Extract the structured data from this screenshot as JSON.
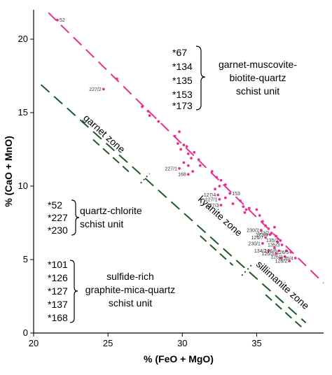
{
  "chart_data": {
    "type": "scatter",
    "xlabel": "% (FeO + MgO)",
    "ylabel": "% (CaO + MnO)",
    "xlim": [
      20,
      39.5
    ],
    "ylim": [
      0,
      22
    ],
    "xticks": [
      20,
      25,
      30,
      35
    ],
    "yticks": [
      0,
      5,
      10,
      15,
      20
    ],
    "points": [
      {
        "x": 21.6,
        "y": 21.3,
        "label": "52"
      },
      {
        "x": 24.7,
        "y": 16.6,
        "label": "227/2"
      },
      {
        "x": 25.6,
        "y": 17.3,
        "label": ""
      },
      {
        "x": 27.3,
        "y": 15.4,
        "label": ""
      },
      {
        "x": 27.7,
        "y": 15.1,
        "label": ""
      },
      {
        "x": 27.8,
        "y": 14.8,
        "label": ""
      },
      {
        "x": 28.4,
        "y": 14.4,
        "label": ""
      },
      {
        "x": 29.5,
        "y": 13.4,
        "label": ""
      },
      {
        "x": 29.8,
        "y": 13.7,
        "label": ""
      },
      {
        "x": 29.7,
        "y": 12.9,
        "label": ""
      },
      {
        "x": 29.9,
        "y": 12.5,
        "label": ""
      },
      {
        "x": 30.1,
        "y": 12.8,
        "label": ""
      },
      {
        "x": 30.3,
        "y": 12.7,
        "label": ""
      },
      {
        "x": 30.4,
        "y": 12.2,
        "label": ""
      },
      {
        "x": 30.6,
        "y": 11.9,
        "label": ""
      },
      {
        "x": 30.8,
        "y": 12.3,
        "label": ""
      },
      {
        "x": 30.1,
        "y": 11.6,
        "label": ""
      },
      {
        "x": 30.4,
        "y": 11.4,
        "label": ""
      },
      {
        "x": 31.1,
        "y": 11.8,
        "label": ""
      },
      {
        "x": 31.2,
        "y": 11.4,
        "label": ""
      },
      {
        "x": 30.7,
        "y": 11.0,
        "label": ""
      },
      {
        "x": 29.8,
        "y": 11.2,
        "label": "227/1"
      },
      {
        "x": 30.4,
        "y": 10.8,
        "label": "168"
      },
      {
        "x": 32.0,
        "y": 11.0,
        "label": ""
      },
      {
        "x": 32.3,
        "y": 10.6,
        "label": ""
      },
      {
        "x": 32.6,
        "y": 10.4,
        "label": ""
      },
      {
        "x": 32.5,
        "y": 10.0,
        "label": ""
      },
      {
        "x": 32.9,
        "y": 10.1,
        "label": ""
      },
      {
        "x": 32.2,
        "y": 9.8,
        "label": ""
      },
      {
        "x": 32.4,
        "y": 9.4,
        "label": "127/4"
      },
      {
        "x": 32.5,
        "y": 9.1,
        "label": "127/1"
      },
      {
        "x": 32.9,
        "y": 9.2,
        "label": ""
      },
      {
        "x": 33.2,
        "y": 9.5,
        "label": "153"
      },
      {
        "x": 32.6,
        "y": 8.7,
        "label": "127/3"
      },
      {
        "x": 33.4,
        "y": 8.8,
        "label": ""
      },
      {
        "x": 33.9,
        "y": 9.0,
        "label": ""
      },
      {
        "x": 34.1,
        "y": 8.6,
        "label": ""
      },
      {
        "x": 34.3,
        "y": 8.4,
        "label": ""
      },
      {
        "x": 34.5,
        "y": 8.5,
        "label": ""
      },
      {
        "x": 34.2,
        "y": 8.2,
        "label": ""
      },
      {
        "x": 35.0,
        "y": 8.4,
        "label": ""
      },
      {
        "x": 35.2,
        "y": 8.0,
        "label": ""
      },
      {
        "x": 35.4,
        "y": 7.6,
        "label": ""
      },
      {
        "x": 35.6,
        "y": 7.3,
        "label": ""
      },
      {
        "x": 35.8,
        "y": 7.1,
        "label": ""
      },
      {
        "x": 36.2,
        "y": 7.2,
        "label": ""
      },
      {
        "x": 36.0,
        "y": 6.8,
        "label": "173/2"
      },
      {
        "x": 35.3,
        "y": 7.0,
        "label": "230/2"
      },
      {
        "x": 35.9,
        "y": 6.7,
        "label": "173/4"
      },
      {
        "x": 35.6,
        "y": 6.5,
        "label": "126/7"
      },
      {
        "x": 36.3,
        "y": 6.6,
        "label": ""
      },
      {
        "x": 36.4,
        "y": 6.2,
        "label": ""
      },
      {
        "x": 36.6,
        "y": 6.3,
        "label": "135/2"
      },
      {
        "x": 35.4,
        "y": 6.1,
        "label": "230/1"
      },
      {
        "x": 36.7,
        "y": 6.0,
        "label": "135/3"
      },
      {
        "x": 36.2,
        "y": 5.8,
        "label": ""
      },
      {
        "x": 35.8,
        "y": 5.6,
        "label": "134/2"
      },
      {
        "x": 36.5,
        "y": 5.6,
        "label": "126/6"
      },
      {
        "x": 36.3,
        "y": 5.4,
        "label": "126/3"
      },
      {
        "x": 37.0,
        "y": 5.6,
        "label": ""
      },
      {
        "x": 37.3,
        "y": 5.5,
        "label": "126/5"
      },
      {
        "x": 36.9,
        "y": 5.2,
        "label": "126/1"
      },
      {
        "x": 37.6,
        "y": 5.1,
        "label": "126/4"
      },
      {
        "x": 37.2,
        "y": 4.9,
        "label": "126/2"
      },
      {
        "x": 36.6,
        "y": 5.1,
        "label": ""
      }
    ],
    "trend_lines": [
      {
        "color": "#e8308f",
        "x1": 21.0,
        "y1": 21.8,
        "x2": 39.5,
        "y2": 3.4
      },
      {
        "color": "#1e5a28",
        "x1": 20.5,
        "y1": 16.9,
        "x2": 38.3,
        "y2": 0.7
      }
    ],
    "zones": [
      {
        "label": "garnet zone",
        "x": 24.6,
        "y": 13.4
      },
      {
        "label": "kyanite zone",
        "x": 32.4,
        "y": 7.8
      },
      {
        "label": "sillimanite zone",
        "x": 36.6,
        "y": 3.1
      }
    ],
    "groups": [
      {
        "samples": [
          "*67",
          "*134",
          "*135",
          "*153",
          "*173"
        ],
        "description": [
          "garnet-muscovite-",
          "biotite-quartz",
          "schist unit"
        ]
      },
      {
        "samples": [
          "*52",
          "*227",
          "*230"
        ],
        "description": [
          "quartz-chlorite",
          "schist unit"
        ]
      },
      {
        "samples": [
          "*101",
          "*126",
          "*127",
          "*137",
          "*168"
        ],
        "description": [
          "sulfide-rich",
          "graphite-mica-quartz",
          "schist unit"
        ]
      }
    ]
  }
}
